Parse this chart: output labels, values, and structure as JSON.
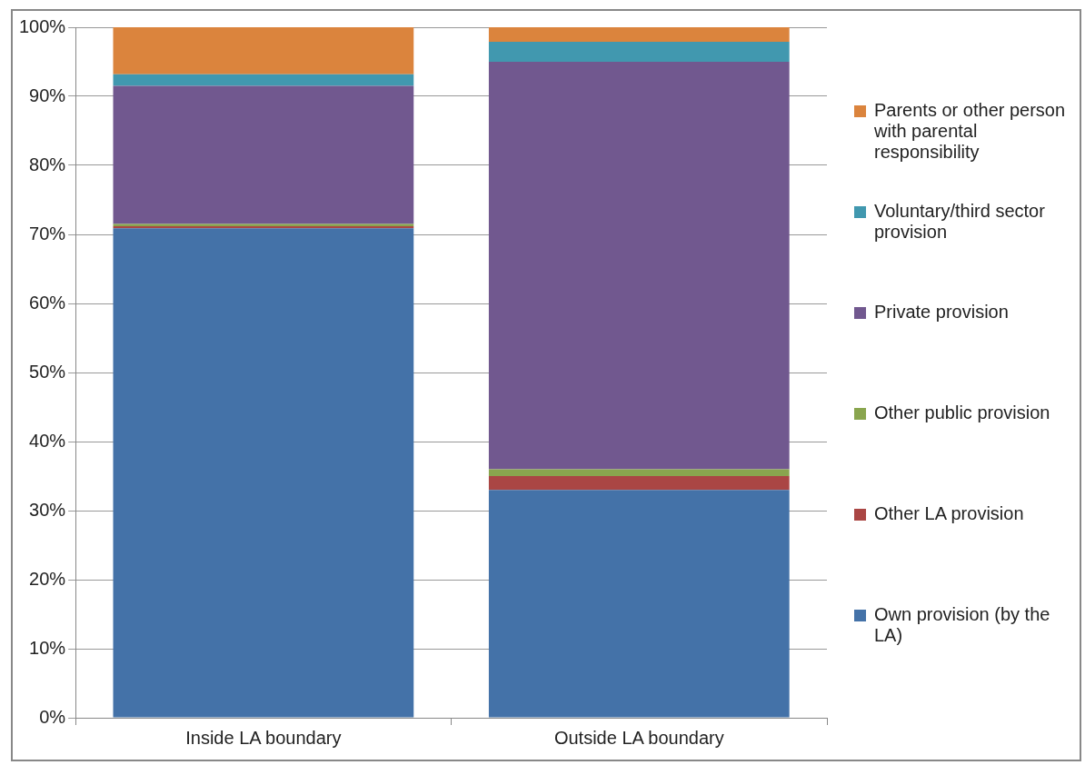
{
  "chart_data": {
    "type": "bar",
    "stacked": true,
    "categories": [
      "Inside LA boundary",
      "Outside LA boundary"
    ],
    "series": [
      {
        "name": "Own provision (by the LA)",
        "color": "#4472a8",
        "values": [
          70.9,
          33
        ]
      },
      {
        "name": "Other LA provision",
        "color": "#aa4644",
        "values": [
          0.3,
          2
        ]
      },
      {
        "name": "Other public provision",
        "color": "#89a54e",
        "values": [
          0.3,
          1
        ]
      },
      {
        "name": "Private provision",
        "color": "#71588f",
        "values": [
          20,
          59
        ]
      },
      {
        "name": "Voluntary/third sector provision",
        "color": "#4198af",
        "values": [
          1.7,
          2.9
        ]
      },
      {
        "name": "Parents or other person with parental responsibility",
        "color": "#db843d",
        "values": [
          6.8,
          2.1
        ]
      }
    ],
    "ylim": [
      0,
      100
    ],
    "yticks": [
      {
        "value": 0,
        "label": "0%"
      },
      {
        "value": 10,
        "label": "10%"
      },
      {
        "value": 20,
        "label": "20%"
      },
      {
        "value": 30,
        "label": "30%"
      },
      {
        "value": 40,
        "label": "40%"
      },
      {
        "value": 50,
        "label": "50%"
      },
      {
        "value": 60,
        "label": "60%"
      },
      {
        "value": 70,
        "label": "70%"
      },
      {
        "value": 80,
        "label": "80%"
      },
      {
        "value": 90,
        "label": "90%"
      },
      {
        "value": 100,
        "label": "100%"
      }
    ],
    "grid": "y",
    "legend": "right"
  }
}
